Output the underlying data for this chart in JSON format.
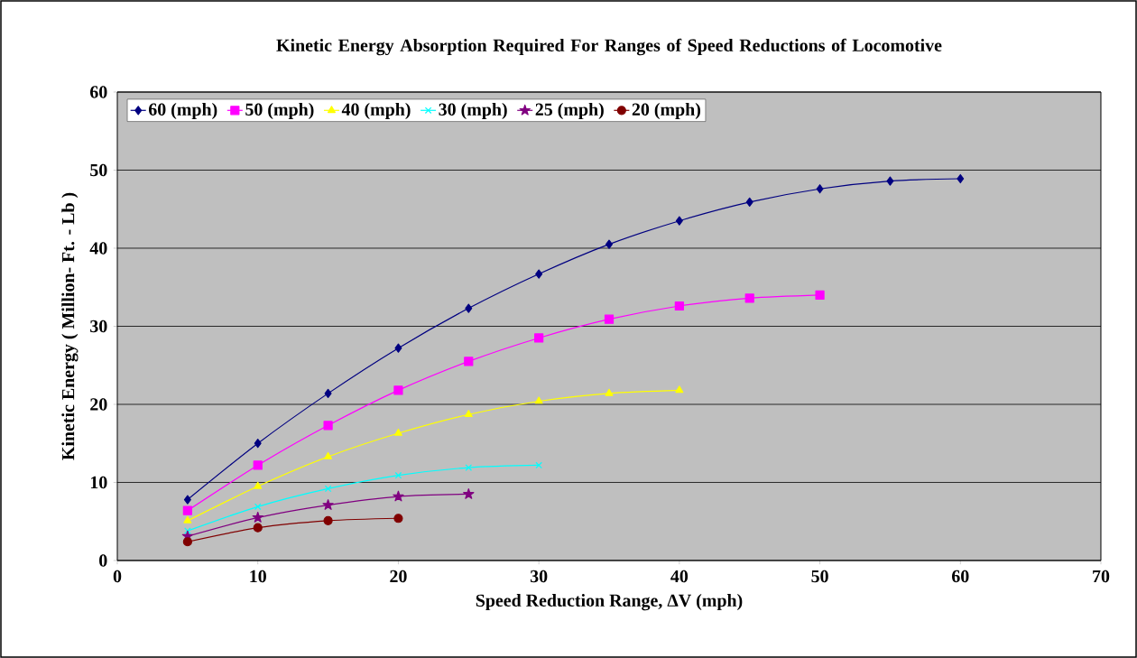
{
  "chart_data": {
    "type": "line",
    "title": "Kinetic Energy Absorption Required For Ranges of Speed Reductions of Locomotive",
    "xlabel": "Speed Reduction Range, ΔV (mph)",
    "ylabel": "Kinetic Energy ( Million- Ft. - Lb )",
    "x": [
      5,
      10,
      15,
      20,
      25,
      30,
      35,
      40,
      45,
      50,
      55,
      60
    ],
    "series": [
      {
        "name": "60 (mph)",
        "color": "#000080",
        "marker": "diamond",
        "values": [
          7.8,
          15.0,
          21.4,
          27.2,
          32.3,
          36.7,
          40.5,
          43.5,
          45.9,
          47.6,
          48.6,
          48.9
        ]
      },
      {
        "name": "50 (mph)",
        "color": "#ff00ff",
        "marker": "square",
        "values": [
          6.4,
          12.2,
          17.3,
          21.8,
          25.5,
          28.5,
          30.9,
          32.6,
          33.6,
          34.0,
          null,
          null
        ]
      },
      {
        "name": "40 (mph)",
        "color": "#ffff00",
        "marker": "triangle",
        "values": [
          5.1,
          9.5,
          13.3,
          16.3,
          18.7,
          20.4,
          21.4,
          21.8,
          null,
          null,
          null,
          null
        ]
      },
      {
        "name": "30 (mph)",
        "color": "#00ffff",
        "marker": "cross",
        "values": [
          3.8,
          6.9,
          9.2,
          10.9,
          11.9,
          12.2,
          null,
          null,
          null,
          null,
          null,
          null
        ]
      },
      {
        "name": "25 (mph)",
        "color": "#800080",
        "marker": "star",
        "values": [
          3.1,
          5.5,
          7.1,
          8.2,
          8.5,
          null,
          null,
          null,
          null,
          null,
          null,
          null
        ]
      },
      {
        "name": "20 (mph)",
        "color": "#800000",
        "marker": "circle",
        "values": [
          2.4,
          4.2,
          5.1,
          5.4,
          null,
          null,
          null,
          null,
          null,
          null,
          null,
          null
        ]
      }
    ],
    "xlim": [
      0,
      70
    ],
    "xticks": [
      0,
      10,
      20,
      30,
      40,
      50,
      60,
      70
    ],
    "ylim": [
      0,
      60
    ],
    "yticks": [
      0,
      10,
      20,
      30,
      40,
      50,
      60
    ],
    "grid": "y",
    "legend": "top left",
    "line_style": "solid"
  }
}
